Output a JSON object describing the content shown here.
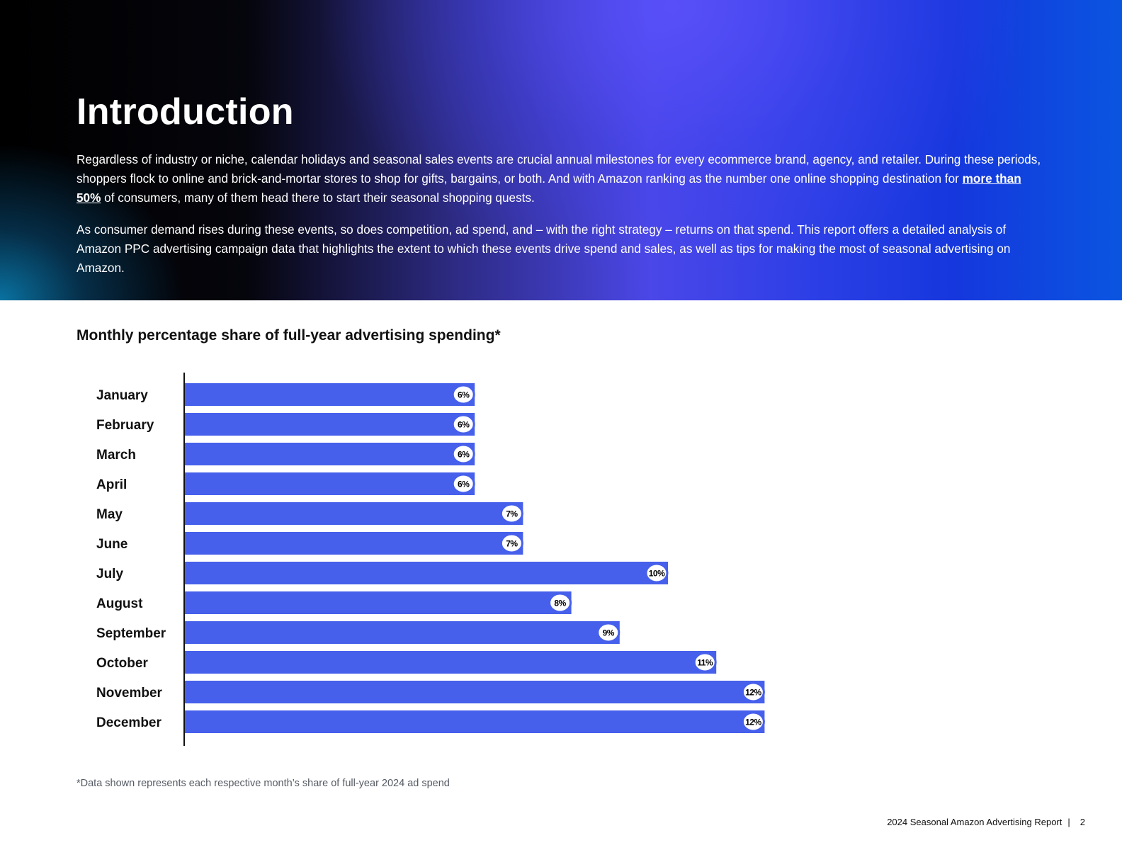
{
  "hero": {
    "title": "Introduction",
    "p1_before": "Regardless of industry or niche, calendar holidays and seasonal sales events are crucial annual milestones for every ecommerce brand, agency, and retailer. During these periods, shoppers flock to online and brick-and-mortar stores to shop for gifts, bargains, or both. And with Amazon ranking as the number one online shopping destination for ",
    "p1_link": "more than 50%",
    "p1_after": " of consumers, many of them head there to start their seasonal shopping quests.",
    "p2": "As consumer demand rises during these events, so does competition, ad spend, and – with the right strategy – returns on that spend. This report offers a detailed analysis of Amazon PPC advertising campaign data that highlights the extent to which these events drive spend and sales, as well as tips for making the most of seasonal advertising on Amazon."
  },
  "chart_data": {
    "type": "bar",
    "orientation": "horizontal",
    "title": "Monthly percentage share of full-year advertising spending*",
    "categories": [
      "January",
      "February",
      "March",
      "April",
      "May",
      "June",
      "July",
      "August",
      "September",
      "October",
      "November",
      "December"
    ],
    "values": [
      6,
      6,
      6,
      6,
      7,
      7,
      10,
      8,
      9,
      11,
      12,
      12
    ],
    "value_labels": [
      "6%",
      "6%",
      "6%",
      "6%",
      "7%",
      "7%",
      "10%",
      "8%",
      "9%",
      "11%",
      "12%",
      "12%"
    ],
    "xlim": [
      0,
      12
    ],
    "grid": false,
    "legend": "none",
    "bar_color": "#4660eb",
    "axis_color": "#111111"
  },
  "footnote": "*Data shown represents each respective month’s share of full-year 2024 ad spend",
  "footer": {
    "report_name": "2024 Seasonal Amazon Advertising Report",
    "separator": "|",
    "page_number": "2"
  }
}
